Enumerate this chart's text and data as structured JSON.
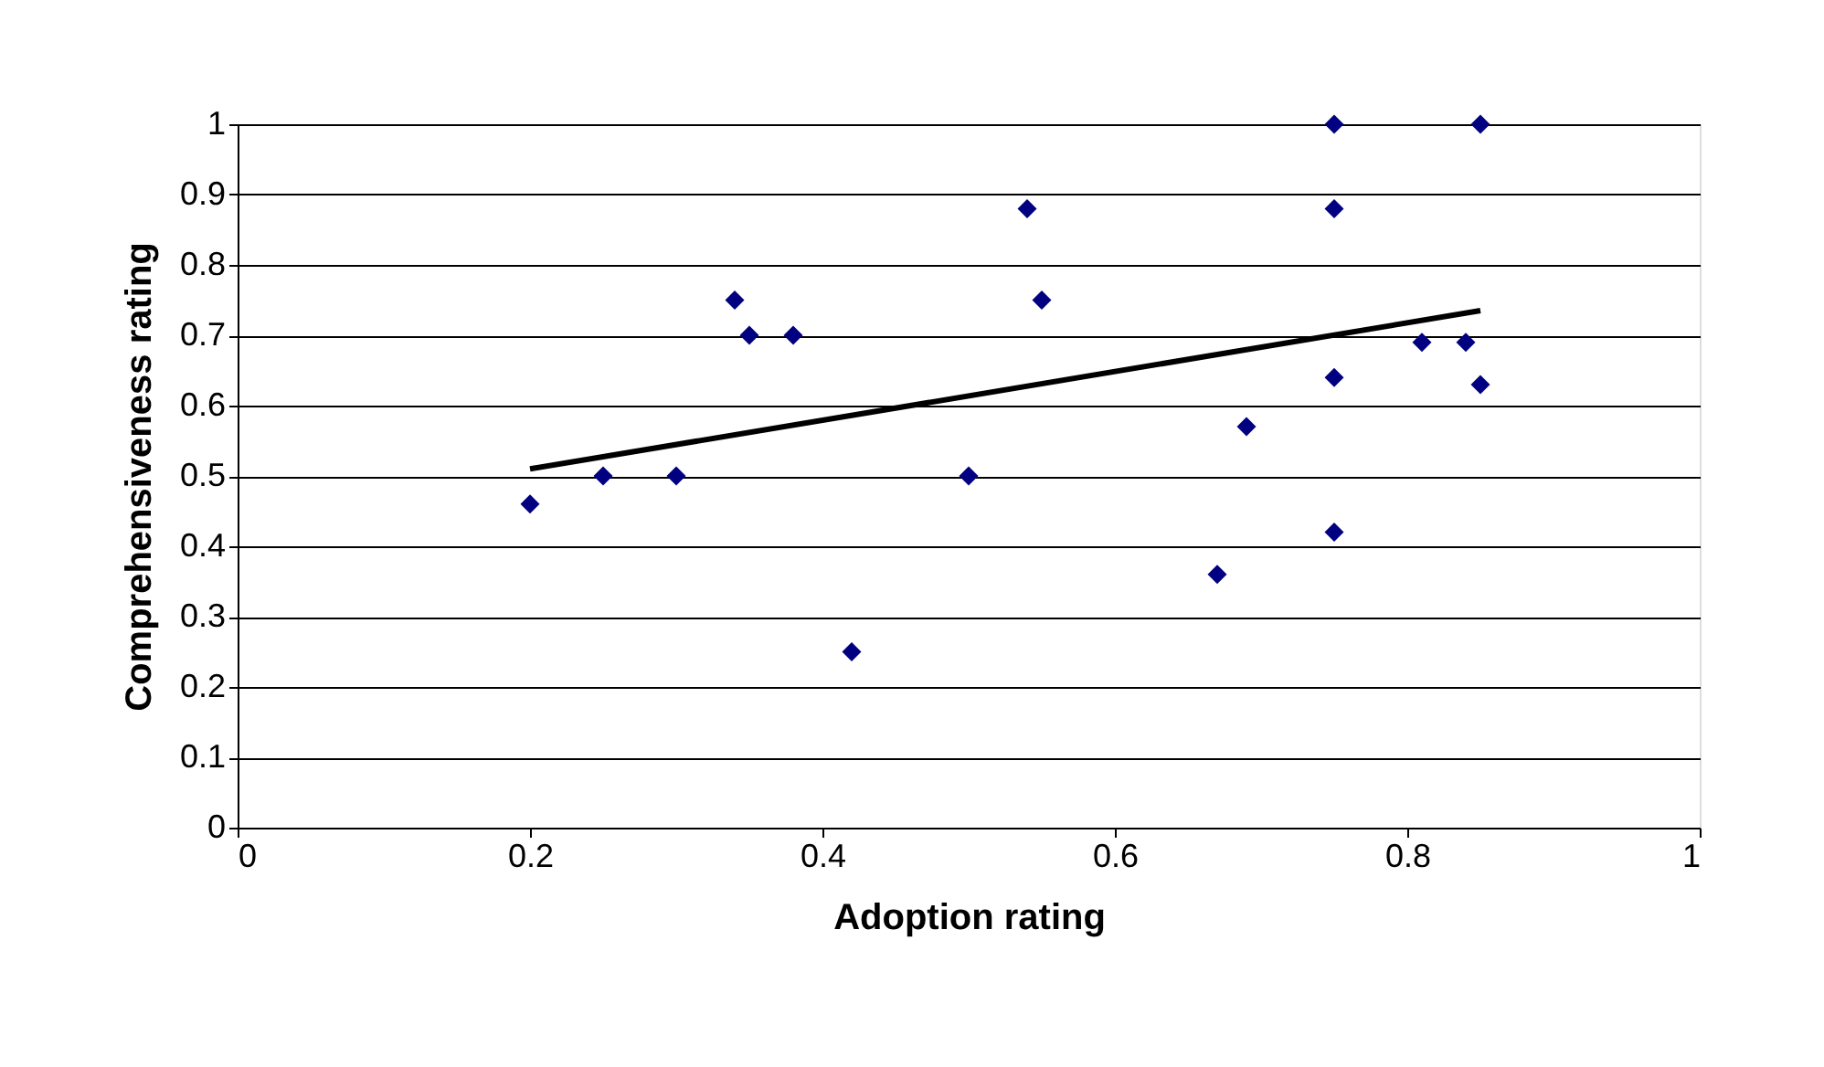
{
  "chart_data": {
    "type": "scatter",
    "xlabel": "Adoption rating",
    "ylabel": "Comprehensiveness rating",
    "xlim": [
      0,
      1
    ],
    "xticks": [
      0,
      0.2,
      0.4,
      0.6,
      0.8,
      1
    ],
    "ylim": [
      0,
      1
    ],
    "yticks": [
      0,
      0.1,
      0.2,
      0.3,
      0.4,
      0.5,
      0.6,
      0.7,
      0.8,
      0.9,
      1
    ],
    "grid": "y",
    "legend": false,
    "series": [
      {
        "color": "#000080",
        "marker": "diamond",
        "x": [
          0.2,
          0.25,
          0.3,
          0.34,
          0.35,
          0.38,
          0.42,
          0.5,
          0.54,
          0.55,
          0.67,
          0.69,
          0.75,
          0.75,
          0.75,
          0.75,
          0.81,
          0.84,
          0.85,
          0.85
        ],
        "values": [
          0.46,
          0.5,
          0.5,
          0.75,
          0.7,
          0.7,
          0.25,
          0.5,
          0.88,
          0.75,
          0.36,
          0.57,
          1.0,
          0.88,
          0.64,
          0.42,
          0.69,
          0.69,
          1.0,
          0.63
        ]
      },
      {
        "type": "line",
        "color": "#000000",
        "line_style": "solid",
        "x": [
          0.2,
          0.85
        ],
        "values": [
          0.51,
          0.735
        ]
      }
    ]
  }
}
